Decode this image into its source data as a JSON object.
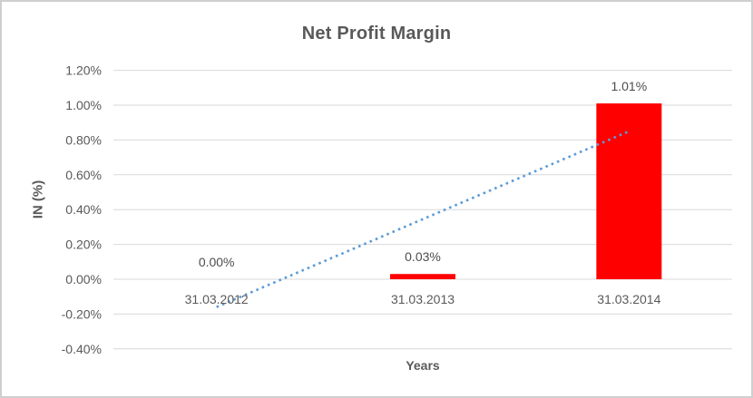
{
  "window": {
    "background": "#ffffff",
    "border_color": "#cfcfcf"
  },
  "chart_data": {
    "type": "bar",
    "title": "Net Profit Margin",
    "xlabel": "Years",
    "ylabel": "IN (%)",
    "categories": [
      "31.03.2012",
      "31.03.2013",
      "31.03.2014"
    ],
    "values": [
      0.0,
      0.03,
      1.01
    ],
    "data_labels": [
      "0.00%",
      "0.03%",
      "1.01%"
    ],
    "unit": "percent",
    "ylim": [
      -0.4,
      1.2
    ],
    "ytick_step": 0.2,
    "yticks": [
      {
        "label": "1.20%",
        "value": 1.2
      },
      {
        "label": "1.00%",
        "value": 1.0
      },
      {
        "label": "0.80%",
        "value": 0.8
      },
      {
        "label": "0.60%",
        "value": 0.6
      },
      {
        "label": "0.40%",
        "value": 0.4
      },
      {
        "label": "0.20%",
        "value": 0.2
      },
      {
        "label": "0.00%",
        "value": 0.0
      },
      {
        "label": "-0.20%",
        "value": -0.2
      },
      {
        "label": "-0.40%",
        "value": -0.4
      }
    ],
    "grid": true,
    "legend": "none",
    "bar_color": "#ff0000",
    "gridline_color": "#d9d9d9",
    "text_color": "#595959",
    "data_label_color": "#4d4d4d",
    "trendline": {
      "type": "linear",
      "style": "dotted",
      "color": "#5b9bd5",
      "values": [
        -0.16,
        0.35,
        0.85
      ]
    }
  }
}
